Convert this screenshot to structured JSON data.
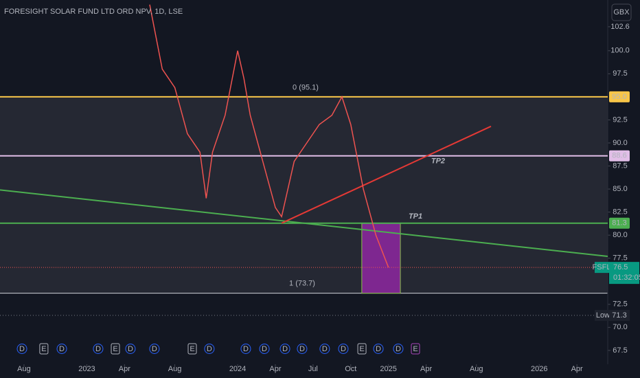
{
  "chart_data": {
    "type": "line",
    "title": "FORESIGHT SOLAR FUND LTD ORD NPV, 1D, LSE",
    "currency": "GBX",
    "symbol": "FSFL",
    "countdown": "01:32:05",
    "xlim": [
      -1.91,
      46.45
    ],
    "ylim": [
      66.0,
      105.5
    ],
    "xticks": [
      {
        "value": 0,
        "label": "Aug"
      },
      {
        "value": 5,
        "label": "2023"
      },
      {
        "value": 8,
        "label": "Apr"
      },
      {
        "value": 12,
        "label": "Aug"
      },
      {
        "value": 17,
        "label": "2024"
      },
      {
        "value": 20,
        "label": "Apr"
      },
      {
        "value": 23,
        "label": "Jul"
      },
      {
        "value": 26,
        "label": "Oct"
      },
      {
        "value": 29,
        "label": "2025"
      },
      {
        "value": 32,
        "label": "Apr"
      },
      {
        "value": 36,
        "label": "Aug"
      },
      {
        "value": 41,
        "label": "2026"
      },
      {
        "value": 44,
        "label": "Apr"
      }
    ],
    "yticks": [
      {
        "value": 102.6,
        "label": "102.6"
      },
      {
        "value": 100,
        "label": "100.0"
      },
      {
        "value": 97.5,
        "label": "97.5"
      },
      {
        "value": 92.5,
        "label": "92.5"
      },
      {
        "value": 90,
        "label": "90.0"
      },
      {
        "value": 87.5,
        "label": "87.5"
      },
      {
        "value": 85,
        "label": "85.0"
      },
      {
        "value": 82.5,
        "label": "82.5"
      },
      {
        "value": 80,
        "label": "80.0"
      },
      {
        "value": 77.5,
        "label": "77.5"
      },
      {
        "value": 72.5,
        "label": "72.5"
      },
      {
        "value": 70,
        "label": "70.0"
      },
      {
        "value": 67.5,
        "label": "67.5"
      }
    ],
    "series": [
      {
        "name": "FSFL",
        "color": "#ef5350",
        "x": [
          10,
          11,
          12,
          13,
          14,
          14.5,
          15,
          16,
          17,
          17.5,
          18,
          19,
          20,
          20.5,
          21.5,
          22.5,
          23.5,
          24.5,
          25.3,
          26,
          27,
          28,
          29
        ],
        "values": [
          105,
          98,
          96,
          91,
          89,
          84,
          89,
          93,
          100,
          97,
          93,
          88,
          83,
          82,
          88,
          90,
          92,
          93,
          95,
          92,
          85,
          80,
          76.5
        ]
      }
    ],
    "levels": [
      {
        "value": 95.0,
        "label": "95.0",
        "color": "#f7c548"
      },
      {
        "value": 88.6,
        "label": "88.6",
        "color": "#e1bee7"
      },
      {
        "value": 81.3,
        "label": "81.3",
        "color": "#4caf50"
      }
    ],
    "fib": {
      "top": 95.1,
      "top_label": "0 (95.1)",
      "bottom": 73.7,
      "bottom_label": "1 (73.7)"
    },
    "last_price": {
      "value": 76.5,
      "label": "76.5"
    },
    "low": {
      "name": "Low",
      "value": 71.3,
      "label": "71.3"
    },
    "trendlines": [
      {
        "color": "#4caf50",
        "x": [
          -1.91,
          46.45
        ],
        "y": [
          84.9,
          77.7
        ]
      },
      {
        "color": "#e53935",
        "x": [
          20.5,
          37.16
        ],
        "y": [
          81.3,
          91.8
        ]
      }
    ],
    "targets": [
      {
        "label": "TP1",
        "x": 30.6,
        "y": 82.0
      },
      {
        "label": "TP2",
        "x": 32.4,
        "y": 88.0
      }
    ],
    "box": {
      "x": [
        26.88,
        29.95
      ],
      "y": [
        81.3,
        73.7
      ],
      "color": "#9c27b0"
    },
    "events": [
      {
        "x": -0.16,
        "label": "D"
      },
      {
        "x": 1.58,
        "label": "E"
      },
      {
        "x": 3.01,
        "label": "D"
      },
      {
        "x": 5.9,
        "label": "D"
      },
      {
        "x": 7.27,
        "label": "E"
      },
      {
        "x": 8.47,
        "label": "D"
      },
      {
        "x": 10.38,
        "label": "D"
      },
      {
        "x": 13.39,
        "label": "E"
      },
      {
        "x": 14.75,
        "label": "D"
      },
      {
        "x": 17.65,
        "label": "D"
      },
      {
        "x": 19.13,
        "label": "D"
      },
      {
        "x": 20.77,
        "label": "D"
      },
      {
        "x": 22.13,
        "label": "D"
      },
      {
        "x": 23.93,
        "label": "D"
      },
      {
        "x": 25.41,
        "label": "D"
      },
      {
        "x": 26.89,
        "label": "E"
      },
      {
        "x": 28.2,
        "label": "D"
      },
      {
        "x": 29.78,
        "label": "D"
      },
      {
        "x": 31.15,
        "label": "E"
      }
    ]
  }
}
